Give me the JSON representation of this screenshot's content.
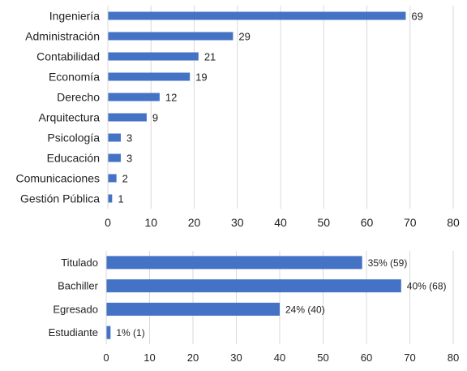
{
  "colors": {
    "bar": "#4472c4",
    "grid": "#d9d9d9",
    "text": "#222222"
  },
  "chart_data": [
    {
      "type": "bar",
      "orientation": "horizontal",
      "categories": [
        "Ingeniería",
        "Administración",
        "Contabilidad",
        "Economía",
        "Derecho",
        "Arquitectura",
        "Psicología",
        "Educación",
        "Comunicaciones",
        "Gestión Pública"
      ],
      "values": [
        69,
        29,
        21,
        19,
        12,
        9,
        3,
        3,
        2,
        1
      ],
      "data_labels": [
        "69",
        "29",
        "21",
        "19",
        "12",
        "9",
        "3",
        "3",
        "2",
        "1"
      ],
      "xlim": [
        0,
        80
      ],
      "xticks": [
        "0",
        "10",
        "20",
        "30",
        "40",
        "50",
        "60",
        "70",
        "80"
      ],
      "grid": "vertical",
      "legend": "none"
    },
    {
      "type": "bar",
      "orientation": "horizontal",
      "categories": [
        "Titulado",
        "Bachiller",
        "Egresado",
        "Estudiante"
      ],
      "values": [
        59,
        68,
        40,
        1
      ],
      "data_labels": [
        "35% (59)",
        "40% (68)",
        "24% (40)",
        "1% (1)"
      ],
      "xlim": [
        0,
        80
      ],
      "xticks": [
        "0",
        "10",
        "20",
        "30",
        "40",
        "50",
        "60",
        "70",
        "80"
      ],
      "grid": "vertical",
      "legend": "none"
    }
  ]
}
